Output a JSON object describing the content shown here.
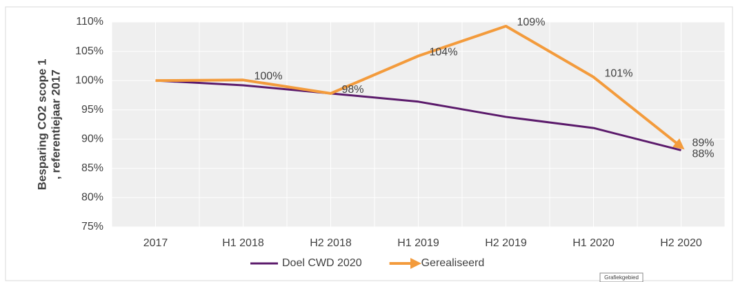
{
  "chart_data": {
    "type": "line",
    "ylabel_lines": [
      "Besparing CO2 scope 1",
      ", referentiejaar 2017"
    ],
    "categories": [
      "2017",
      "H1 2018",
      "H2 2018",
      "H1 2019",
      "H2 2019",
      "H1 2020",
      "H2 2020"
    ],
    "series": [
      {
        "name": "Doel CWD 2020",
        "color": "#5b1a6b",
        "values": [
          100,
          99.2,
          97.8,
          96.4,
          93.8,
          91.9,
          88.1
        ],
        "value_labels": [
          null,
          null,
          null,
          null,
          null,
          null,
          "88%"
        ]
      },
      {
        "name": "Gerealiseerd",
        "color": "#f39b3c",
        "values": [
          100,
          100.1,
          97.8,
          104.2,
          109.3,
          100.6,
          88.7
        ],
        "value_labels": [
          null,
          "100%",
          "98%",
          "104%",
          "109%",
          "101%",
          "89%"
        ]
      }
    ],
    "ylim": [
      75,
      110
    ],
    "yticks": [
      {
        "value": 75,
        "label": "75%"
      },
      {
        "value": 80,
        "label": "80%"
      },
      {
        "value": 85,
        "label": "85%"
      },
      {
        "value": 90,
        "label": "90%"
      },
      {
        "value": 95,
        "label": "95%"
      },
      {
        "value": 100,
        "label": "100%"
      },
      {
        "value": 105,
        "label": "105%"
      },
      {
        "value": 110,
        "label": "110%"
      }
    ],
    "grid": true,
    "legend": "bottom",
    "tooltip": "Grafiekgebied"
  }
}
